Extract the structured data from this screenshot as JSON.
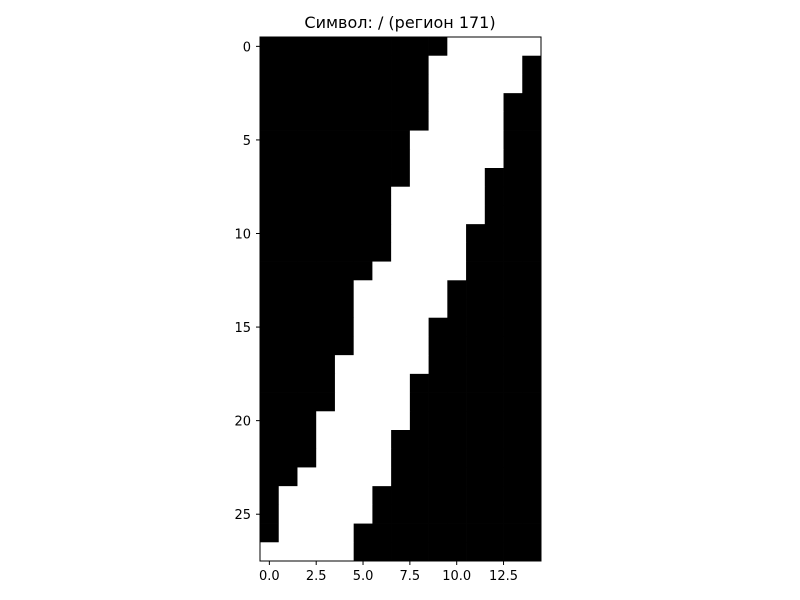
{
  "chart_data": {
    "type": "heatmap",
    "title": "Символ: / (регион 171)",
    "colormap": "gray",
    "rows": 28,
    "cols": 15,
    "white_runs": [
      [
        10,
        14
      ],
      [
        9,
        13
      ],
      [
        9,
        13
      ],
      [
        9,
        12
      ],
      [
        9,
        12
      ],
      [
        8,
        12
      ],
      [
        8,
        12
      ],
      [
        8,
        11
      ],
      [
        7,
        11
      ],
      [
        7,
        11
      ],
      [
        7,
        10
      ],
      [
        7,
        10
      ],
      [
        6,
        10
      ],
      [
        5,
        9
      ],
      [
        5,
        9
      ],
      [
        5,
        8
      ],
      [
        5,
        8
      ],
      [
        4,
        8
      ],
      [
        4,
        7
      ],
      [
        4,
        7
      ],
      [
        3,
        7
      ],
      [
        3,
        6
      ],
      [
        3,
        6
      ],
      [
        2,
        6
      ],
      [
        1,
        5
      ],
      [
        1,
        5
      ],
      [
        1,
        4
      ],
      [
        0,
        4
      ]
    ],
    "xlim": [
      -0.5,
      14.5
    ],
    "ylim": [
      27.5,
      -0.5
    ],
    "xticks": [
      0.0,
      2.5,
      5.0,
      7.5,
      10.0,
      12.5
    ],
    "xtick_labels": [
      "0.0",
      "2.5",
      "5.0",
      "7.5",
      "10.0",
      "12.5"
    ],
    "yticks": [
      0,
      5,
      10,
      15,
      20,
      25
    ],
    "ytick_labels": [
      "0",
      "5",
      "10",
      "15",
      "20",
      "25"
    ],
    "grid": false,
    "colors": {
      "ink": "#000000",
      "paper": "#ffffff"
    }
  }
}
